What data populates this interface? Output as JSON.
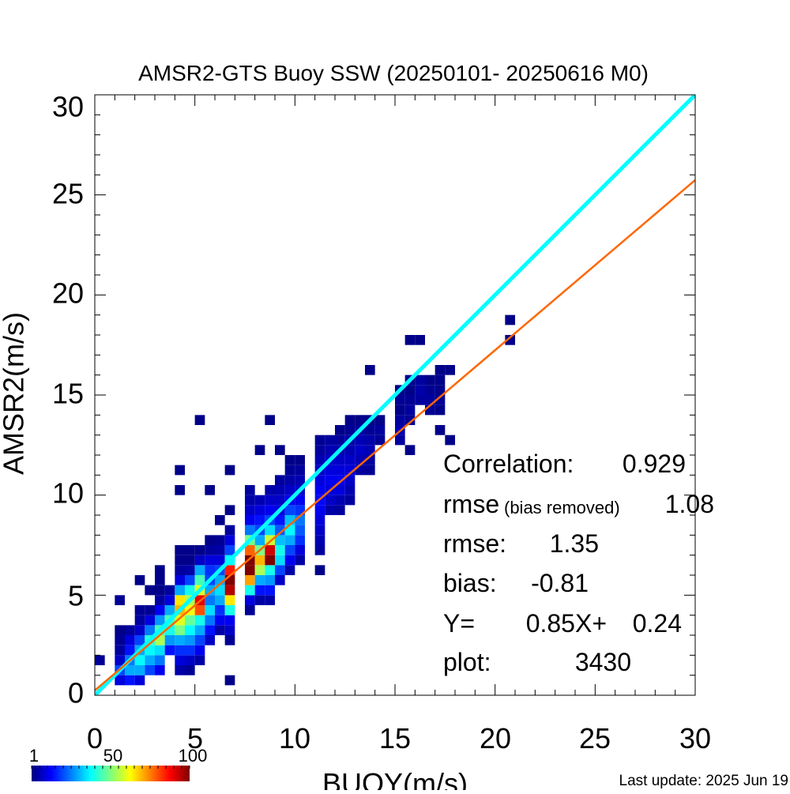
{
  "chart_data": {
    "type": "heatmap",
    "title": "AMSR2-GTS Buoy SSW (20250101- 20250616 M0)",
    "xlabel": "BUOY(m/s)",
    "ylabel": "AMSR2(m/s)",
    "xlim": [
      0,
      30
    ],
    "ylim": [
      0,
      30
    ],
    "xticks": [
      "0",
      "5",
      "10",
      "15",
      "20",
      "25",
      "30"
    ],
    "yticks": [
      "0",
      "5",
      "10",
      "15",
      "20",
      "25",
      "30"
    ],
    "bin_size": 0.5,
    "bins": [
      [
        0.25,
        1.75,
        3
      ],
      [
        1.25,
        0.75,
        10
      ],
      [
        1.25,
        1.25,
        20
      ],
      [
        1.25,
        1.75,
        8
      ],
      [
        1.25,
        2.25,
        4
      ],
      [
        1.25,
        2.75,
        3
      ],
      [
        1.25,
        3.25,
        2
      ],
      [
        1.25,
        4.75,
        3
      ],
      [
        1.75,
        0.75,
        15
      ],
      [
        1.75,
        1.25,
        30
      ],
      [
        1.75,
        1.75,
        25
      ],
      [
        1.75,
        2.25,
        15
      ],
      [
        1.75,
        2.75,
        10
      ],
      [
        1.75,
        3.25,
        4
      ],
      [
        2.25,
        0.75,
        10
      ],
      [
        2.25,
        1.25,
        30
      ],
      [
        2.25,
        1.75,
        38
      ],
      [
        2.25,
        2.25,
        30
      ],
      [
        2.25,
        2.75,
        20
      ],
      [
        2.25,
        3.25,
        8
      ],
      [
        2.25,
        3.75,
        4
      ],
      [
        2.25,
        4.25,
        3
      ],
      [
        2.25,
        5.75,
        2
      ],
      [
        2.75,
        1.25,
        20
      ],
      [
        2.75,
        1.75,
        30
      ],
      [
        2.75,
        2.25,
        38
      ],
      [
        2.75,
        2.75,
        42
      ],
      [
        2.75,
        3.25,
        25
      ],
      [
        2.75,
        3.75,
        10
      ],
      [
        2.75,
        4.25,
        3
      ],
      [
        2.75,
        5.25,
        2
      ],
      [
        3.25,
        1.25,
        12
      ],
      [
        3.25,
        1.75,
        25
      ],
      [
        3.25,
        2.25,
        35
      ],
      [
        3.25,
        2.75,
        55
      ],
      [
        3.25,
        3.25,
        45
      ],
      [
        3.25,
        3.75,
        28
      ],
      [
        3.25,
        4.25,
        12
      ],
      [
        3.25,
        4.75,
        4
      ],
      [
        3.25,
        5.25,
        2
      ],
      [
        3.25,
        5.75,
        2
      ],
      [
        3.25,
        6.25,
        2
      ],
      [
        3.75,
        2.25,
        15
      ],
      [
        3.75,
        2.75,
        28
      ],
      [
        3.75,
        3.25,
        40
      ],
      [
        3.75,
        3.75,
        45
      ],
      [
        3.75,
        4.25,
        30
      ],
      [
        3.75,
        4.75,
        10
      ],
      [
        3.75,
        5.25,
        4
      ],
      [
        4.25,
        1.25,
        5
      ],
      [
        4.25,
        1.75,
        10
      ],
      [
        4.25,
        2.25,
        18
      ],
      [
        4.25,
        2.75,
        30
      ],
      [
        4.25,
        3.25,
        50
      ],
      [
        4.25,
        3.75,
        60
      ],
      [
        4.25,
        4.25,
        70
      ],
      [
        4.25,
        4.75,
        65
      ],
      [
        4.25,
        5.25,
        30
      ],
      [
        4.25,
        5.75,
        10
      ],
      [
        4.25,
        6.25,
        4
      ],
      [
        4.25,
        6.75,
        2
      ],
      [
        4.25,
        7.25,
        2
      ],
      [
        4.25,
        10.25,
        2
      ],
      [
        4.25,
        11.25,
        2
      ],
      [
        4.75,
        1.25,
        3
      ],
      [
        4.75,
        1.75,
        8
      ],
      [
        4.75,
        2.25,
        18
      ],
      [
        4.75,
        2.75,
        28
      ],
      [
        4.75,
        3.25,
        38
      ],
      [
        4.75,
        3.75,
        48
      ],
      [
        4.75,
        4.25,
        62
      ],
      [
        4.75,
        4.75,
        55
      ],
      [
        4.75,
        5.25,
        40
      ],
      [
        4.75,
        5.75,
        20
      ],
      [
        4.75,
        6.25,
        5
      ],
      [
        4.75,
        6.75,
        2
      ],
      [
        4.75,
        7.25,
        2
      ],
      [
        5.25,
        1.75,
        5
      ],
      [
        5.25,
        2.25,
        12
      ],
      [
        5.25,
        2.75,
        20
      ],
      [
        5.25,
        3.25,
        30
      ],
      [
        5.25,
        3.75,
        40
      ],
      [
        5.25,
        4.25,
        80
      ],
      [
        5.25,
        4.75,
        90
      ],
      [
        5.25,
        5.25,
        60
      ],
      [
        5.25,
        5.75,
        45
      ],
      [
        5.25,
        6.25,
        30
      ],
      [
        5.25,
        6.75,
        8
      ],
      [
        5.25,
        7.25,
        2
      ],
      [
        5.25,
        13.75,
        2
      ],
      [
        5.75,
        2.75,
        8
      ],
      [
        5.75,
        3.25,
        15
      ],
      [
        5.75,
        3.75,
        25
      ],
      [
        5.75,
        4.25,
        35
      ],
      [
        5.75,
        4.75,
        25
      ],
      [
        5.75,
        5.25,
        30
      ],
      [
        5.75,
        5.75,
        20
      ],
      [
        5.75,
        6.25,
        18
      ],
      [
        5.75,
        6.75,
        10
      ],
      [
        5.75,
        7.25,
        4
      ],
      [
        5.75,
        7.75,
        2
      ],
      [
        5.75,
        10.25,
        2
      ],
      [
        6.25,
        3.25,
        5
      ],
      [
        6.25,
        3.75,
        12
      ],
      [
        6.25,
        4.25,
        18
      ],
      [
        6.25,
        4.75,
        30
      ],
      [
        6.25,
        5.25,
        35
      ],
      [
        6.25,
        5.75,
        30
      ],
      [
        6.25,
        6.25,
        20
      ],
      [
        6.25,
        6.75,
        10
      ],
      [
        6.25,
        7.25,
        5
      ],
      [
        6.25,
        7.75,
        3
      ],
      [
        6.25,
        8.75,
        2
      ],
      [
        6.75,
        0.75,
        2
      ],
      [
        6.75,
        2.75,
        3
      ],
      [
        6.75,
        3.25,
        8
      ],
      [
        6.75,
        3.75,
        12
      ],
      [
        6.75,
        4.25,
        40
      ],
      [
        6.75,
        4.75,
        65
      ],
      [
        6.75,
        5.25,
        95
      ],
      [
        6.75,
        5.75,
        100
      ],
      [
        6.75,
        6.25,
        85
      ],
      [
        6.75,
        6.75,
        38
      ],
      [
        6.75,
        7.25,
        20
      ],
      [
        6.75,
        7.75,
        10
      ],
      [
        6.75,
        8.25,
        4
      ],
      [
        6.75,
        9.25,
        2
      ],
      [
        6.75,
        11.25,
        2
      ],
      [
        7.75,
        4.25,
        3
      ],
      [
        7.75,
        4.75,
        10
      ],
      [
        7.75,
        5.25,
        40
      ],
      [
        7.75,
        5.75,
        72
      ],
      [
        7.75,
        6.25,
        100
      ],
      [
        7.75,
        6.75,
        100
      ],
      [
        7.75,
        7.25,
        78
      ],
      [
        7.75,
        7.75,
        50
      ],
      [
        7.75,
        8.25,
        25
      ],
      [
        7.75,
        8.75,
        12
      ],
      [
        7.75,
        9.25,
        8
      ],
      [
        7.75,
        9.75,
        5
      ],
      [
        7.75,
        10.25,
        4
      ],
      [
        8.25,
        4.75,
        5
      ],
      [
        8.25,
        5.25,
        15
      ],
      [
        8.25,
        5.75,
        30
      ],
      [
        8.25,
        6.25,
        55
      ],
      [
        8.25,
        6.75,
        70
      ],
      [
        8.25,
        7.25,
        50
      ],
      [
        8.25,
        7.75,
        30
      ],
      [
        8.25,
        8.25,
        20
      ],
      [
        8.25,
        8.75,
        15
      ],
      [
        8.25,
        9.25,
        10
      ],
      [
        8.25,
        9.75,
        6
      ],
      [
        8.25,
        12.25,
        2
      ],
      [
        8.75,
        4.75,
        5
      ],
      [
        8.75,
        5.25,
        15
      ],
      [
        8.75,
        5.75,
        28
      ],
      [
        8.75,
        6.25,
        40
      ],
      [
        8.75,
        6.75,
        100
      ],
      [
        8.75,
        7.25,
        92
      ],
      [
        8.75,
        7.75,
        58
      ],
      [
        8.75,
        8.25,
        35
      ],
      [
        8.75,
        8.75,
        20
      ],
      [
        8.75,
        9.25,
        12
      ],
      [
        8.75,
        9.75,
        8
      ],
      [
        8.75,
        10.25,
        5
      ],
      [
        8.75,
        13.75,
        2
      ],
      [
        9.25,
        5.75,
        8
      ],
      [
        9.25,
        6.25,
        20
      ],
      [
        9.25,
        6.75,
        35
      ],
      [
        9.25,
        7.25,
        40
      ],
      [
        9.25,
        7.75,
        32
      ],
      [
        9.25,
        8.25,
        22
      ],
      [
        9.25,
        8.75,
        15
      ],
      [
        9.25,
        9.25,
        10
      ],
      [
        9.25,
        9.75,
        8
      ],
      [
        9.25,
        10.25,
        6
      ],
      [
        9.25,
        10.75,
        4
      ],
      [
        9.25,
        12.25,
        2
      ],
      [
        9.75,
        6.25,
        5
      ],
      [
        9.75,
        6.75,
        12
      ],
      [
        9.75,
        7.25,
        20
      ],
      [
        9.75,
        7.75,
        30
      ],
      [
        9.75,
        8.25,
        38
      ],
      [
        9.75,
        8.75,
        32
      ],
      [
        9.75,
        9.25,
        20
      ],
      [
        9.75,
        9.75,
        12
      ],
      [
        9.75,
        10.25,
        8
      ],
      [
        9.75,
        10.75,
        5
      ],
      [
        9.75,
        11.25,
        3
      ],
      [
        9.75,
        11.75,
        2
      ],
      [
        10.25,
        6.75,
        5
      ],
      [
        10.25,
        7.25,
        10
      ],
      [
        10.25,
        7.75,
        18
      ],
      [
        10.25,
        8.25,
        22
      ],
      [
        10.25,
        8.75,
        25
      ],
      [
        10.25,
        9.25,
        18
      ],
      [
        10.25,
        9.75,
        12
      ],
      [
        10.25,
        10.25,
        8
      ],
      [
        10.25,
        10.75,
        6
      ],
      [
        10.25,
        11.25,
        4
      ],
      [
        10.25,
        11.75,
        2
      ],
      [
        11.25,
        6.25,
        2
      ],
      [
        11.25,
        7.25,
        4
      ],
      [
        11.25,
        7.75,
        6
      ],
      [
        11.25,
        8.25,
        8
      ],
      [
        11.25,
        8.75,
        10
      ],
      [
        11.25,
        9.25,
        12
      ],
      [
        11.25,
        9.75,
        14
      ],
      [
        11.25,
        10.25,
        12
      ],
      [
        11.25,
        10.75,
        10
      ],
      [
        11.25,
        11.25,
        8
      ],
      [
        11.25,
        11.75,
        6
      ],
      [
        11.25,
        12.25,
        4
      ],
      [
        11.25,
        12.75,
        3
      ],
      [
        11.75,
        9.25,
        5
      ],
      [
        11.75,
        9.75,
        8
      ],
      [
        11.75,
        10.25,
        10
      ],
      [
        11.75,
        10.75,
        12
      ],
      [
        11.75,
        11.25,
        10
      ],
      [
        11.75,
        11.75,
        8
      ],
      [
        11.75,
        12.25,
        6
      ],
      [
        11.75,
        12.75,
        4
      ],
      [
        12.25,
        9.25,
        4
      ],
      [
        12.25,
        9.75,
        6
      ],
      [
        12.25,
        10.25,
        10
      ],
      [
        12.25,
        10.75,
        12
      ],
      [
        12.25,
        11.25,
        10
      ],
      [
        12.25,
        11.75,
        8
      ],
      [
        12.25,
        12.25,
        6
      ],
      [
        12.25,
        12.75,
        4
      ],
      [
        12.25,
        13.25,
        2
      ],
      [
        12.75,
        9.75,
        4
      ],
      [
        12.75,
        10.25,
        6
      ],
      [
        12.75,
        10.75,
        8
      ],
      [
        12.75,
        11.25,
        10
      ],
      [
        12.75,
        11.75,
        8
      ],
      [
        12.75,
        12.25,
        6
      ],
      [
        12.75,
        12.75,
        5
      ],
      [
        12.75,
        13.25,
        3
      ],
      [
        12.75,
        13.75,
        2
      ],
      [
        13.25,
        11.25,
        4
      ],
      [
        13.25,
        11.75,
        6
      ],
      [
        13.25,
        12.25,
        8
      ],
      [
        13.25,
        12.75,
        6
      ],
      [
        13.25,
        13.25,
        4
      ],
      [
        13.25,
        13.75,
        2
      ],
      [
        13.75,
        11.25,
        3
      ],
      [
        13.75,
        11.75,
        4
      ],
      [
        13.75,
        12.25,
        6
      ],
      [
        13.75,
        12.75,
        5
      ],
      [
        13.75,
        13.25,
        3
      ],
      [
        13.75,
        13.75,
        2
      ],
      [
        13.75,
        16.25,
        2
      ],
      [
        14.25,
        12.75,
        3
      ],
      [
        14.25,
        13.25,
        4
      ],
      [
        14.25,
        13.75,
        2
      ],
      [
        15.25,
        12.75,
        4
      ],
      [
        15.25,
        13.25,
        6
      ],
      [
        15.25,
        13.75,
        4
      ],
      [
        15.25,
        14.25,
        2
      ],
      [
        15.25,
        14.75,
        3
      ],
      [
        15.25,
        15.25,
        2
      ],
      [
        15.75,
        12.25,
        2
      ],
      [
        15.75,
        13.75,
        3
      ],
      [
        15.75,
        14.25,
        4
      ],
      [
        15.75,
        14.75,
        3
      ],
      [
        15.75,
        15.25,
        2
      ],
      [
        15.75,
        15.75,
        2
      ],
      [
        15.75,
        17.75,
        2
      ],
      [
        16.25,
        14.75,
        4
      ],
      [
        16.25,
        15.25,
        5
      ],
      [
        16.25,
        15.75,
        4
      ],
      [
        16.25,
        17.75,
        2
      ],
      [
        16.75,
        14.25,
        3
      ],
      [
        16.75,
        14.75,
        4
      ],
      [
        16.75,
        15.25,
        3
      ],
      [
        16.75,
        15.75,
        2
      ],
      [
        17.25,
        13.25,
        2
      ],
      [
        17.25,
        14.25,
        2
      ],
      [
        17.25,
        14.75,
        3
      ],
      [
        17.25,
        15.25,
        2
      ],
      [
        17.25,
        15.75,
        2
      ],
      [
        17.25,
        16.25,
        2
      ],
      [
        17.75,
        12.75,
        2
      ],
      [
        17.75,
        16.25,
        2
      ],
      [
        20.75,
        17.75,
        2
      ],
      [
        20.75,
        18.75,
        2
      ]
    ],
    "lines": [
      {
        "kind": "one-to-one",
        "color": "#00ffff",
        "points": [
          [
            0,
            0
          ],
          [
            30,
            30
          ]
        ]
      },
      {
        "kind": "fit",
        "color": "#ff6600",
        "points": [
          [
            0,
            0.24
          ],
          [
            30,
            25.74
          ]
        ]
      }
    ],
    "stats": {
      "correlation_label": "Correlation:",
      "correlation": "0.929",
      "rmse_br_label": "rmse",
      "rmse_br_note": "(bias removed)",
      "rmse_br": "1.08",
      "rmse_label": "rmse:",
      "rmse": "1.35",
      "bias_label": "bias:",
      "bias": "-0.81",
      "fit_label": "Y=",
      "fit_slope": "0.85X+",
      "fit_intercept": "0.24",
      "plot_label": "plot:",
      "plot_count": "3430"
    },
    "colorbar": {
      "min_label": "1",
      "mid_label": "50",
      "max_label": "100",
      "min": 1,
      "max": 100,
      "colors": [
        "#00007f",
        "#0000ff",
        "#007fff",
        "#00ffff",
        "#7fff7f",
        "#ffff00",
        "#ff7f00",
        "#ff0000",
        "#7f0000"
      ]
    }
  },
  "footer": {
    "last_update": "Last update: 2025 Jun 19"
  }
}
